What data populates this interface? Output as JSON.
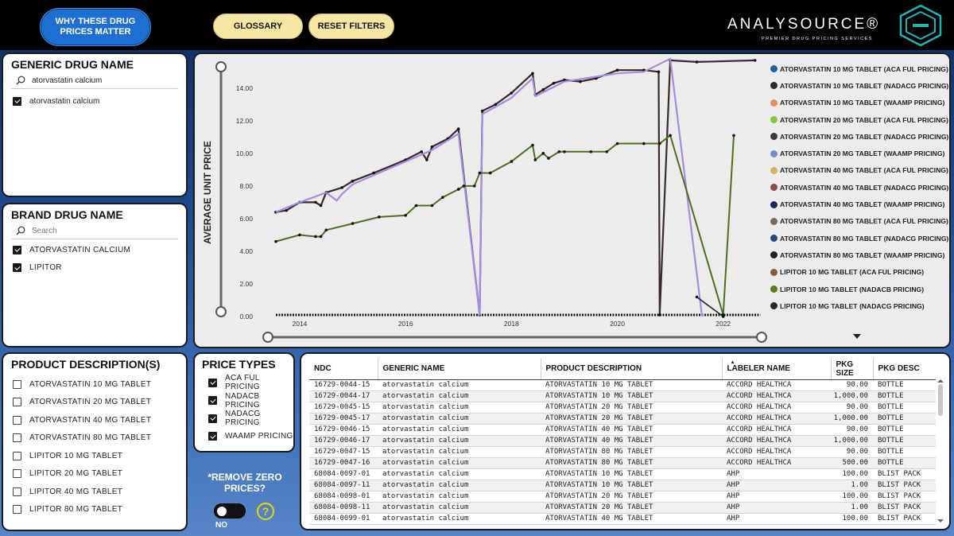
{
  "header": {
    "why_button": "WHY THESE DRUG PRICES MATTER",
    "glossary_button": "GLOSSARY",
    "reset_button": "RESET FILTERS",
    "brand_name": "ANALYSOURCE®",
    "brand_tagline": "PREMIER DRUG PRICING SERVICES"
  },
  "generic_panel": {
    "title": "GENERIC DRUG NAME",
    "search_value": "atorvastatin calcium",
    "items": [
      {
        "label": "atorvastatin calcium",
        "checked": true
      }
    ]
  },
  "brand_panel": {
    "title": "BRAND DRUG NAME",
    "search_placeholder": "Search",
    "items": [
      {
        "label": "ATORVASTATIN CALCIUM",
        "checked": true
      },
      {
        "label": "LIPITOR",
        "checked": true
      }
    ]
  },
  "product_panel": {
    "title": "PRODUCT DESCRIPTION(S)",
    "items": [
      {
        "label": "ATORVASTATIN 10 MG TABLET",
        "checked": false
      },
      {
        "label": "ATORVASTATIN 20 MG TABLET",
        "checked": false
      },
      {
        "label": "ATORVASTATIN 40 MG TABLET",
        "checked": false
      },
      {
        "label": "ATORVASTATIN 80 MG TABLET",
        "checked": false
      },
      {
        "label": "LIPITOR 10 MG TABLET",
        "checked": false
      },
      {
        "label": "LIPITOR 20 MG TABLET",
        "checked": false
      },
      {
        "label": "LIPITOR 40 MG TABLET",
        "checked": false
      },
      {
        "label": "LIPITOR 80 MG TABLET",
        "checked": false
      }
    ]
  },
  "price_panel": {
    "title": "PRICE TYPES",
    "items": [
      {
        "label": "ACA FUL PRICING",
        "checked": true
      },
      {
        "label": "NADACB PRICING",
        "checked": true
      },
      {
        "label": "NADACG PRICING",
        "checked": true
      },
      {
        "label": "WAAMP PRICING",
        "checked": true
      }
    ]
  },
  "remove_zero": {
    "label": "*REMOVE ZERO PRICES?",
    "toggle_value": "NO",
    "help_icon": "?"
  },
  "chart_data": {
    "type": "line",
    "ylabel": "AVERAGE UNIT PRICE",
    "xlabel": "",
    "ylim": [
      0,
      15.5
    ],
    "xlim": [
      2013.4,
      2022.8
    ],
    "y_ticks": [
      "0.00",
      "2.00",
      "4.00",
      "6.00",
      "8.00",
      "10.00",
      "12.00",
      "14.00"
    ],
    "x_ticks": [
      "2014",
      "2016",
      "2018",
      "2020",
      "2022"
    ],
    "legend": [
      {
        "name": "ATORVASTATIN 10 MG TABLET (ACA FUL PRICING)",
        "color": "#1f5fa6"
      },
      {
        "name": "ATORVASTATIN 10 MG TABLET (NADACG PRICING)",
        "color": "#2a2a2a"
      },
      {
        "name": "ATORVASTATIN 10 MG TABLET (WAAMP PRICING)",
        "color": "#e0925a"
      },
      {
        "name": "ATORVASTATIN 20 MG TABLET (ACA FUL PRICING)",
        "color": "#8ac43f"
      },
      {
        "name": "ATORVASTATIN 20 MG TABLET (NADACG PRICING)",
        "color": "#3a3a3a"
      },
      {
        "name": "ATORVASTATIN 20 MG TABLET (WAAMP PRICING)",
        "color": "#6f8fcf"
      },
      {
        "name": "ATORVASTATIN 40 MG TABLET (ACA FUL PRICING)",
        "color": "#d8b45a"
      },
      {
        "name": "ATORVASTATIN 40 MG TABLET (NADACG PRICING)",
        "color": "#8a4a4a"
      },
      {
        "name": "ATORVASTATIN 40 MG TABLET (WAAMP PRICING)",
        "color": "#1c2a5a"
      },
      {
        "name": "ATORVASTATIN 80 MG TABLET (ACA FUL PRICING)",
        "color": "#7a6a5a"
      },
      {
        "name": "ATORVASTATIN 80 MG TABLET (NADACG PRICING)",
        "color": "#244a7a"
      },
      {
        "name": "ATORVASTATIN 80 MG TABLET (WAAMP PRICING)",
        "color": "#222222"
      },
      {
        "name": "LIPITOR 10 MG TABLET (ACA FUL PRICING)",
        "color": "#8a5a3a"
      },
      {
        "name": "LIPITOR 10 MG TABLET (NADACB PRICING)",
        "color": "#5a7a1a"
      },
      {
        "name": "LIPITOR 10 MG TABLET (NADACG PRICING)",
        "color": "#2a2a2a"
      }
    ],
    "series": [
      {
        "color": "#3a2a2a",
        "width": 2.2,
        "points": [
          [
            2013.55,
            6.4
          ],
          [
            2013.75,
            6.5
          ],
          [
            2014.0,
            7.0
          ],
          [
            2014.3,
            7.0
          ],
          [
            2014.4,
            6.8
          ],
          [
            2014.5,
            7.6
          ],
          [
            2014.8,
            7.9
          ],
          [
            2015.0,
            8.3
          ],
          [
            2015.4,
            8.8
          ],
          [
            2016.0,
            9.6
          ],
          [
            2016.3,
            10.1
          ],
          [
            2016.4,
            9.6
          ],
          [
            2016.5,
            10.4
          ],
          [
            2016.8,
            10.9
          ],
          [
            2017.0,
            11.5
          ],
          [
            2017.4,
            0.1
          ],
          [
            2017.45,
            12.6
          ],
          [
            2017.7,
            13.0
          ],
          [
            2018.0,
            13.7
          ],
          [
            2018.4,
            14.9
          ],
          [
            2018.45,
            13.6
          ],
          [
            2018.6,
            13.9
          ],
          [
            2018.8,
            14.3
          ],
          [
            2019.0,
            14.5
          ],
          [
            2019.3,
            14.4
          ],
          [
            2019.6,
            14.6
          ],
          [
            2020.0,
            15.1
          ],
          [
            2020.5,
            15.1
          ],
          [
            2020.78,
            15.0
          ],
          [
            2020.8,
            0.1
          ],
          [
            2021.0,
            15.7
          ],
          [
            2021.5,
            15.6
          ],
          [
            2022.6,
            15.7
          ]
        ]
      },
      {
        "color": "#a58be6",
        "width": 2.2,
        "points": [
          [
            2013.55,
            6.4
          ],
          [
            2014.0,
            7.0
          ],
          [
            2014.5,
            7.6
          ],
          [
            2014.7,
            7.1
          ],
          [
            2014.8,
            7.5
          ],
          [
            2015.0,
            8.1
          ],
          [
            2016.0,
            9.5
          ],
          [
            2016.5,
            10.2
          ],
          [
            2017.0,
            11.2
          ],
          [
            2017.4,
            0.1
          ],
          [
            2017.45,
            12.4
          ],
          [
            2018.0,
            13.4
          ],
          [
            2018.4,
            14.6
          ],
          [
            2018.45,
            13.5
          ],
          [
            2019.0,
            14.4
          ],
          [
            2020.0,
            14.9
          ],
          [
            2020.5,
            15.0
          ],
          [
            2021.0,
            15.8
          ],
          [
            2021.6,
            0.0
          ]
        ]
      },
      {
        "color": "#4f6f1f",
        "width": 2,
        "points": [
          [
            2013.55,
            4.6
          ],
          [
            2014.0,
            5.0
          ],
          [
            2014.3,
            4.9
          ],
          [
            2014.4,
            4.9
          ],
          [
            2014.5,
            5.3
          ],
          [
            2015.0,
            5.7
          ],
          [
            2015.5,
            6.1
          ],
          [
            2016.0,
            6.2
          ],
          [
            2016.2,
            6.8
          ],
          [
            2016.5,
            6.8
          ],
          [
            2016.7,
            7.3
          ],
          [
            2017.0,
            7.8
          ],
          [
            2017.1,
            8.0
          ],
          [
            2017.3,
            8.0
          ],
          [
            2017.4,
            8.8
          ],
          [
            2017.6,
            8.8
          ],
          [
            2018.0,
            9.5
          ],
          [
            2018.4,
            10.5
          ],
          [
            2018.45,
            9.6
          ],
          [
            2018.6,
            10.0
          ],
          [
            2018.7,
            9.7
          ],
          [
            2018.9,
            10.1
          ],
          [
            2019.0,
            10.1
          ],
          [
            2019.5,
            10.1
          ],
          [
            2019.8,
            10.1
          ],
          [
            2020.0,
            10.6
          ],
          [
            2020.5,
            10.6
          ],
          [
            2020.8,
            10.6
          ],
          [
            2021.0,
            11.1
          ],
          [
            2022.0,
            0.1
          ],
          [
            2022.2,
            11.1
          ]
        ]
      },
      {
        "color": "#222222",
        "width": 1.6,
        "points": [
          [
            2021.5,
            1.2
          ],
          [
            2022.0,
            0.0
          ]
        ]
      }
    ]
  },
  "table": {
    "columns": [
      "NDC",
      "GENERIC NAME",
      "PRODUCT DESCRIPTION",
      "LABELER NAME",
      "PKG SIZE",
      "PKG DESC"
    ],
    "rows": [
      [
        "16729-0044-15",
        "atorvastatin calcium",
        "ATORVASTATIN 10 MG TABLET",
        "ACCORD HEALTHCA",
        "90.00",
        "BOTTLE"
      ],
      [
        "16729-0044-17",
        "atorvastatin calcium",
        "ATORVASTATIN 10 MG TABLET",
        "ACCORD HEALTHCA",
        "1,000.00",
        "BOTTLE"
      ],
      [
        "16729-0045-15",
        "atorvastatin calcium",
        "ATORVASTATIN 20 MG TABLET",
        "ACCORD HEALTHCA",
        "90.00",
        "BOTTLE"
      ],
      [
        "16729-0045-17",
        "atorvastatin calcium",
        "ATORVASTATIN 20 MG TABLET",
        "ACCORD HEALTHCA",
        "1,000.00",
        "BOTTLE"
      ],
      [
        "16729-0046-15",
        "atorvastatin calcium",
        "ATORVASTATIN 40 MG TABLET",
        "ACCORD HEALTHCA",
        "90.00",
        "BOTTLE"
      ],
      [
        "16729-0046-17",
        "atorvastatin calcium",
        "ATORVASTATIN 40 MG TABLET",
        "ACCORD HEALTHCA",
        "1,000.00",
        "BOTTLE"
      ],
      [
        "16729-0047-15",
        "atorvastatin calcium",
        "ATORVASTATIN 80 MG TABLET",
        "ACCORD HEALTHCA",
        "90.00",
        "BOTTLE"
      ],
      [
        "16729-0047-16",
        "atorvastatin calcium",
        "ATORVASTATIN 80 MG TABLET",
        "ACCORD HEALTHCA",
        "500.00",
        "BOTTLE"
      ],
      [
        "68084-0097-01",
        "atorvastatin calcium",
        "ATORVASTATIN 10 MG TABLET",
        "AHP",
        "100.00",
        "BLIST PACK"
      ],
      [
        "68084-0097-11",
        "atorvastatin calcium",
        "ATORVASTATIN 10 MG TABLET",
        "AHP",
        "1.00",
        "BLIST PACK"
      ],
      [
        "68084-0098-01",
        "atorvastatin calcium",
        "ATORVASTATIN 20 MG TABLET",
        "AHP",
        "100.00",
        "BLIST PACK"
      ],
      [
        "68084-0098-11",
        "atorvastatin calcium",
        "ATORVASTATIN 20 MG TABLET",
        "AHP",
        "1.00",
        "BLIST PACK"
      ],
      [
        "68084-0099-01",
        "atorvastatin calcium",
        "ATORVASTATIN 40 MG TABLET",
        "AHP",
        "100.00",
        "BLIST PACK"
      ]
    ]
  }
}
